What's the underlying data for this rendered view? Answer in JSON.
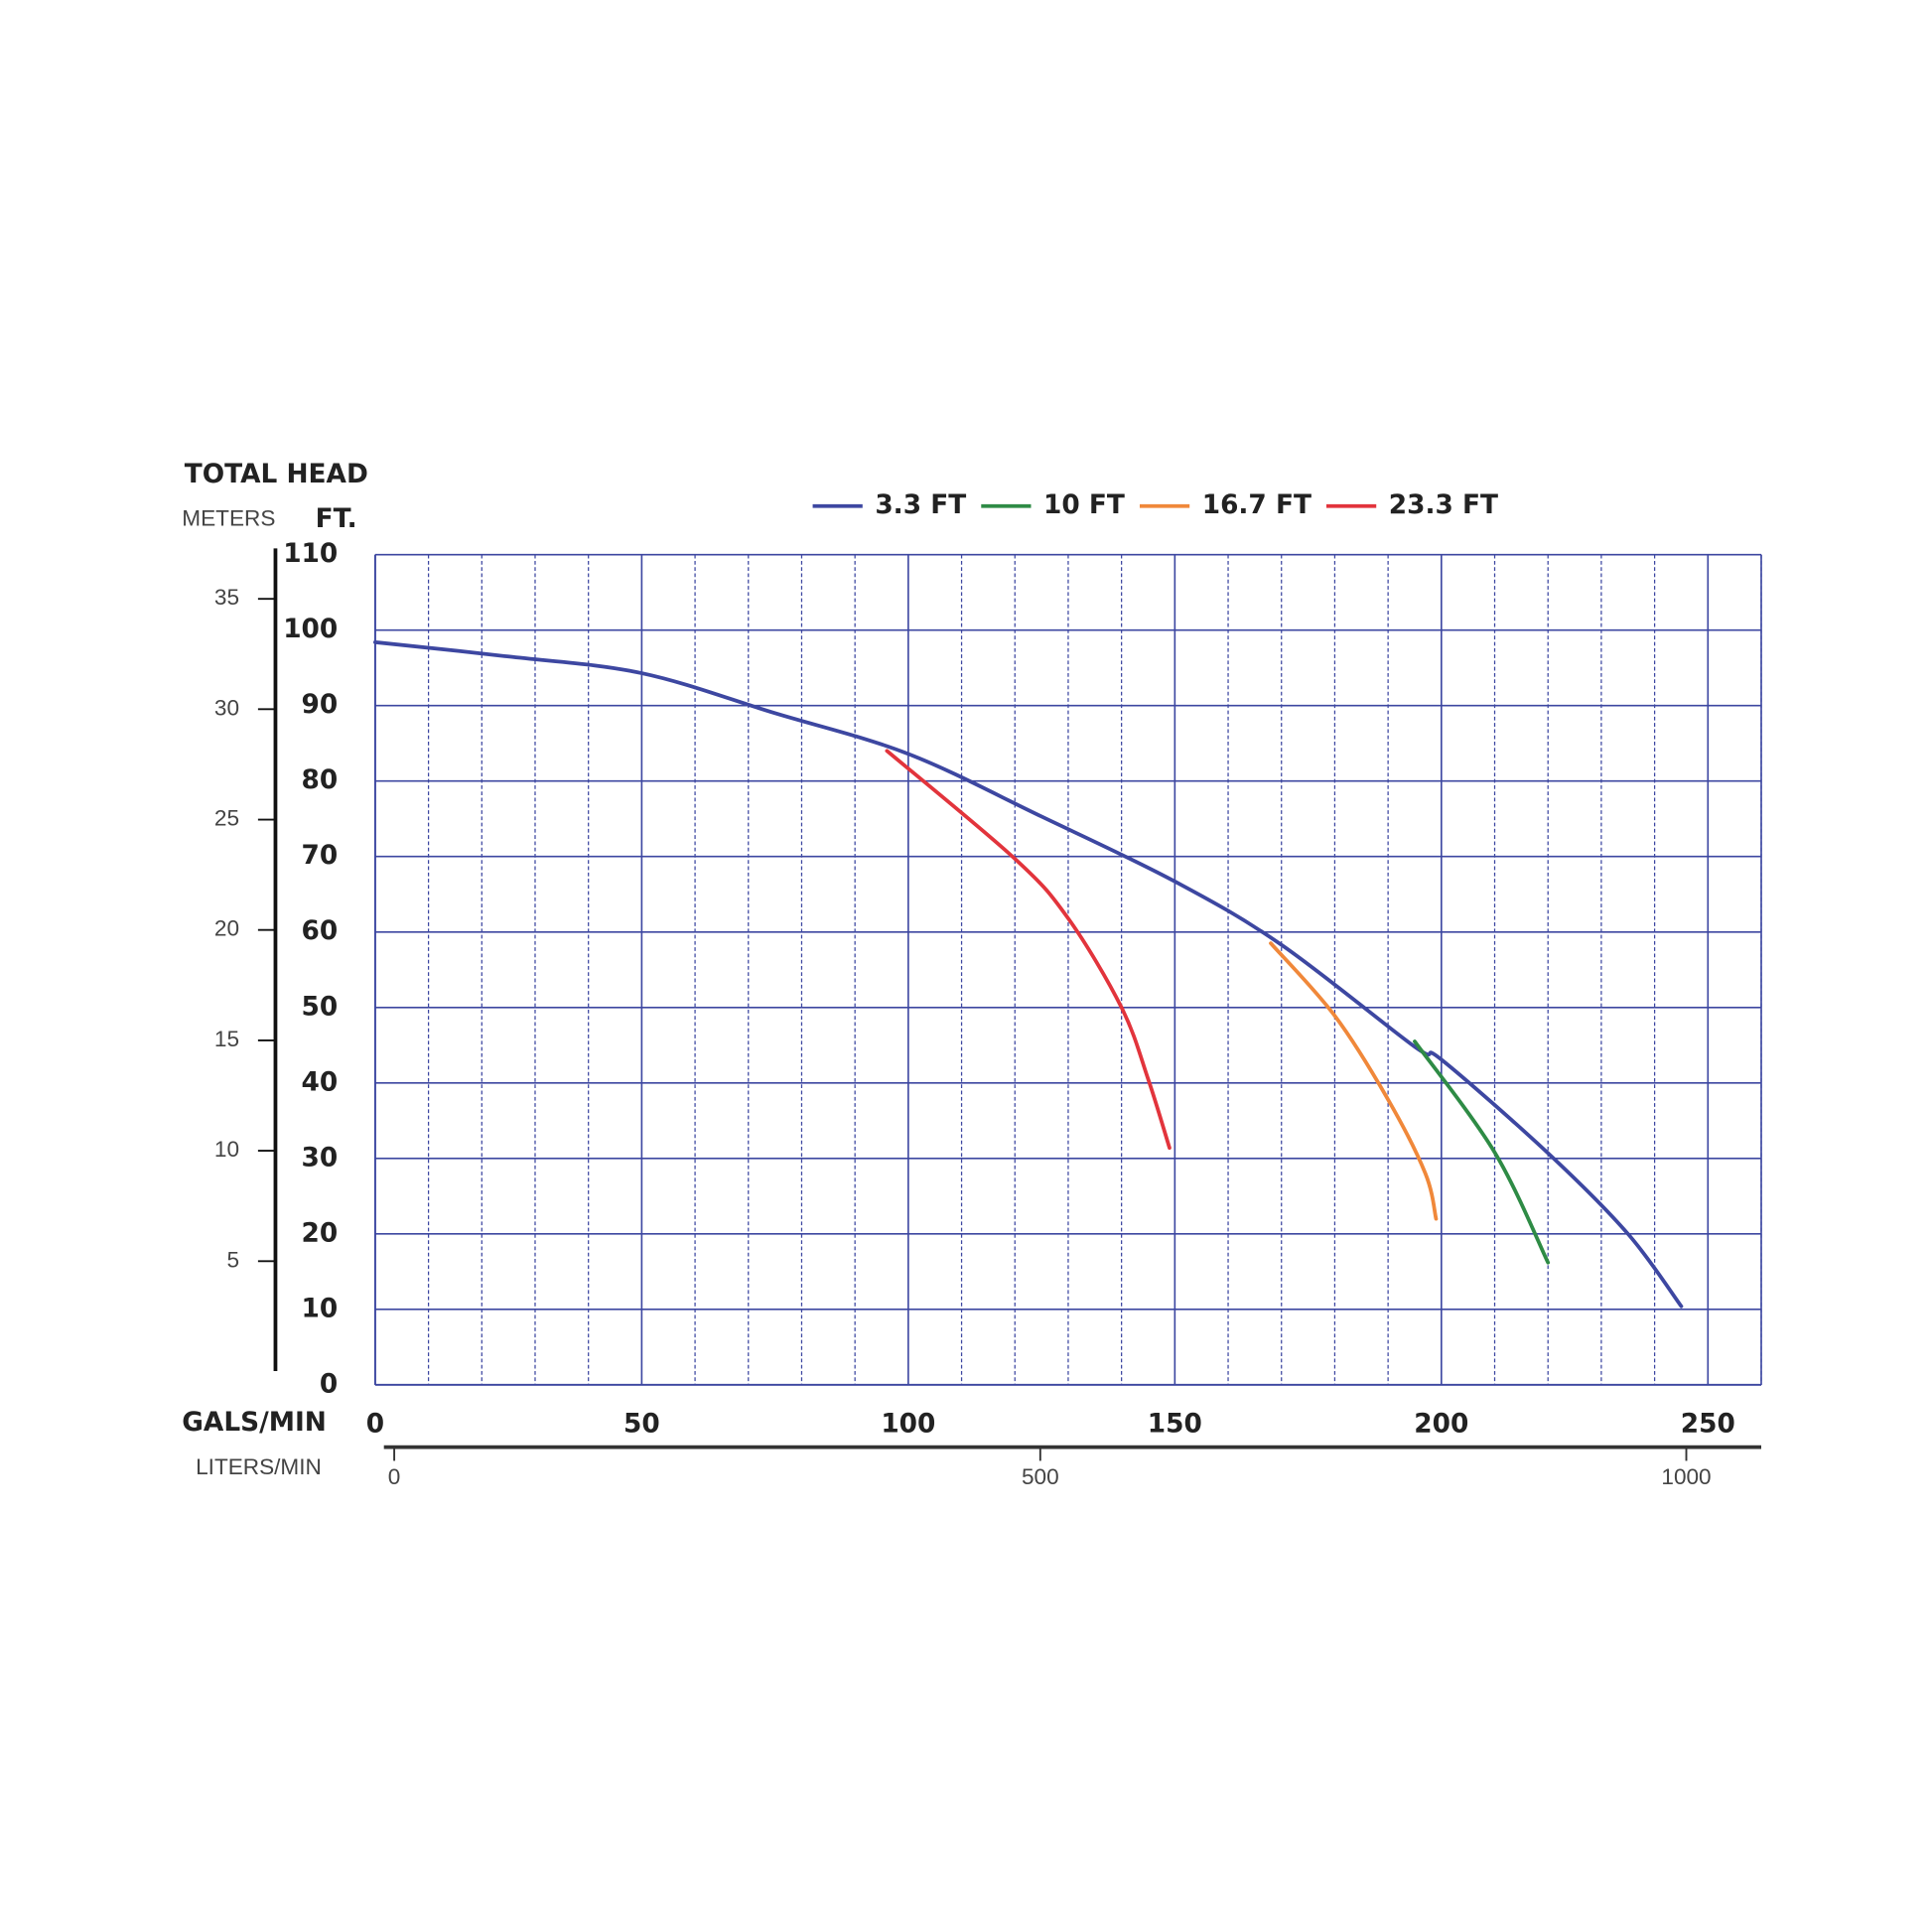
{
  "chart_data": {
    "type": "line",
    "title": "TOTAL HEAD",
    "y_axis_label": "FT.",
    "y2_axis_label": "METERS",
    "x_axis_label": "GALS/MIN",
    "x2_axis_label": "LITERS/MIN",
    "xlim": [
      0,
      260
    ],
    "xticks": [
      0,
      50,
      100,
      150,
      200,
      250
    ],
    "x_minor_ticks": [
      10,
      20,
      30,
      40,
      60,
      70,
      80,
      90,
      110,
      120,
      130,
      140,
      160,
      170,
      180,
      190,
      210,
      220,
      230,
      240,
      260
    ],
    "ylim": [
      0,
      110
    ],
    "yticks": [
      0,
      10,
      20,
      30,
      40,
      50,
      60,
      70,
      80,
      90,
      100,
      110
    ],
    "y2lim": [
      -0.6,
      37
    ],
    "y2ticks": [
      5,
      10,
      15,
      20,
      25,
      30,
      35
    ],
    "x2lim": [
      -8,
      1058
    ],
    "x2ticks": [
      0,
      500,
      1000
    ],
    "grid": true,
    "legend": "top",
    "series": [
      {
        "name": "3.3 FT",
        "color": "#3d47a1",
        "x": [
          0,
          25,
          50,
          75,
          100,
          125,
          150,
          170,
          195,
          200,
          220,
          235,
          245
        ],
        "values": [
          98.4,
          96.5,
          94.3,
          89,
          83.6,
          75.3,
          66.7,
          58.3,
          44.8,
          43.1,
          30.7,
          20,
          10.4
        ]
      },
      {
        "name": "10 FT",
        "color": "#2e8b45",
        "x": [
          195,
          210,
          220
        ],
        "values": [
          45.5,
          30.8,
          16.2
        ]
      },
      {
        "name": "16.7 FT",
        "color": "#f0883a",
        "x": [
          168,
          180,
          190,
          197,
          199
        ],
        "values": [
          58.5,
          48.9,
          37.8,
          28,
          22
        ]
      },
      {
        "name": "23.3 FT",
        "color": "#e2343c",
        "x": [
          96,
          120,
          130,
          140,
          145,
          149
        ],
        "values": [
          84,
          69.7,
          61.8,
          50,
          40.5,
          31.4
        ]
      }
    ]
  }
}
